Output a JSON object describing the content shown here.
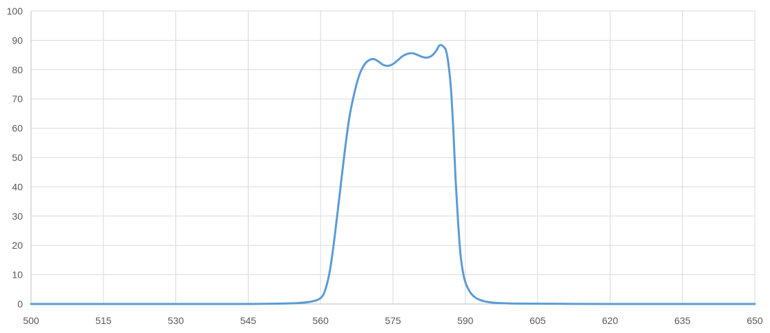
{
  "chart_data": {
    "type": "line",
    "title": "",
    "xlabel": "",
    "ylabel": "",
    "xlim": [
      500,
      650
    ],
    "ylim": [
      0,
      100
    ],
    "x_ticks": [
      500,
      515,
      530,
      545,
      560,
      575,
      590,
      605,
      620,
      635,
      650
    ],
    "y_ticks": [
      0,
      10,
      20,
      30,
      40,
      50,
      60,
      70,
      80,
      90,
      100
    ],
    "x_tick_labels": [
      "500",
      "515",
      "530",
      "545",
      "560",
      "575",
      "590",
      "605",
      "620",
      "635",
      "650"
    ],
    "y_tick_labels": [
      "0",
      "10",
      "20",
      "30",
      "40",
      "50",
      "60",
      "70",
      "80",
      "90",
      "100"
    ],
    "grid": true,
    "legend": "none",
    "colors": {
      "line": "#5b9bd5",
      "grid": "#d9d9d9",
      "axis": "#bfbfbf",
      "text": "#595959"
    },
    "series": [
      {
        "x": [
          500,
          540,
          550,
          555,
          558,
          560,
          561,
          562,
          563,
          564,
          565,
          566,
          567,
          568,
          569,
          570,
          571,
          572,
          573,
          574,
          575,
          576,
          577,
          578,
          579,
          580,
          581,
          582,
          583,
          584,
          584.5,
          585,
          585.5,
          586,
          586.5,
          587,
          587.5,
          588,
          588.5,
          589,
          589.5,
          590,
          591,
          592,
          593,
          594,
          596,
          600,
          610,
          620,
          650
        ],
        "y": [
          0,
          0,
          0.1,
          0.3,
          0.8,
          2,
          5,
          12,
          24,
          38,
          52,
          64,
          72,
          78,
          81.5,
          83.2,
          83.6,
          82.8,
          81.6,
          81.3,
          81.9,
          83.2,
          84.6,
          85.4,
          85.6,
          85.1,
          84.4,
          84.1,
          84.7,
          86.5,
          88,
          88.4,
          87.8,
          86.5,
          82,
          74,
          60,
          42,
          28,
          17,
          11,
          7.5,
          4,
          2.3,
          1.4,
          0.9,
          0.4,
          0.15,
          0.05,
          0,
          0
        ]
      }
    ]
  }
}
